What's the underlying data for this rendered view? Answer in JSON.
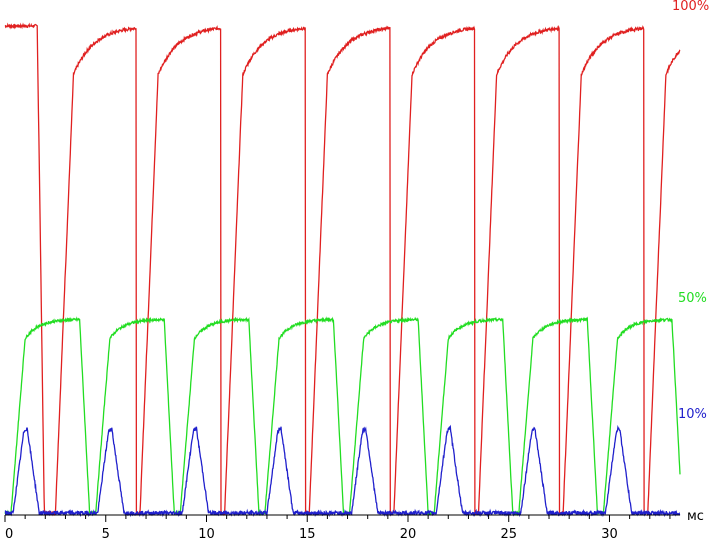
{
  "chart_data": {
    "type": "line",
    "title": "",
    "xlabel": "",
    "ylabel": "",
    "x_unit_label": "мс",
    "xlim": [
      0,
      33.5
    ],
    "ylim": [
      0,
      100
    ],
    "x_ticks": [
      0,
      5,
      10,
      15,
      20,
      25,
      30
    ],
    "x_tick_labels": [
      "0",
      "5",
      "10",
      "15",
      "20",
      "25",
      "30"
    ],
    "grid": false,
    "axis_color": "#000000",
    "period_ms": 4.2,
    "series": [
      {
        "name": "100%",
        "color": "#e02020",
        "high": 98,
        "low": 0,
        "fall_start": [
          1.6,
          5.8,
          10.0,
          14.2,
          18.4,
          22.6,
          26.8,
          31.0
        ],
        "rise_start": [
          2.5,
          6.7,
          10.9,
          15.1,
          19.3,
          23.5,
          27.7,
          31.9
        ],
        "fall_ms": 0.35,
        "rise_ms": 0.9
      },
      {
        "name": "50%",
        "color": "#22dd22",
        "high": 39,
        "low": 0,
        "rise_start": [
          0.3,
          4.5,
          8.7,
          12.9,
          17.1,
          21.3,
          25.5,
          29.7
        ],
        "fall_start": [
          3.7,
          7.9,
          12.1,
          16.3,
          20.5,
          24.7,
          28.9,
          33.1
        ],
        "rise_ms": 0.7,
        "fall_ms": 0.5
      },
      {
        "name": "10%",
        "color": "#2020cc",
        "high": 17,
        "low": 0,
        "rise_start": [
          0.4,
          4.6,
          8.8,
          13.0,
          17.2,
          21.4,
          25.6,
          29.8
        ],
        "fall_start": [
          1.1,
          5.3,
          9.5,
          13.7,
          17.9,
          22.1,
          26.3,
          30.5
        ],
        "rise_ms": 0.5,
        "fall_ms": 0.6
      }
    ]
  }
}
